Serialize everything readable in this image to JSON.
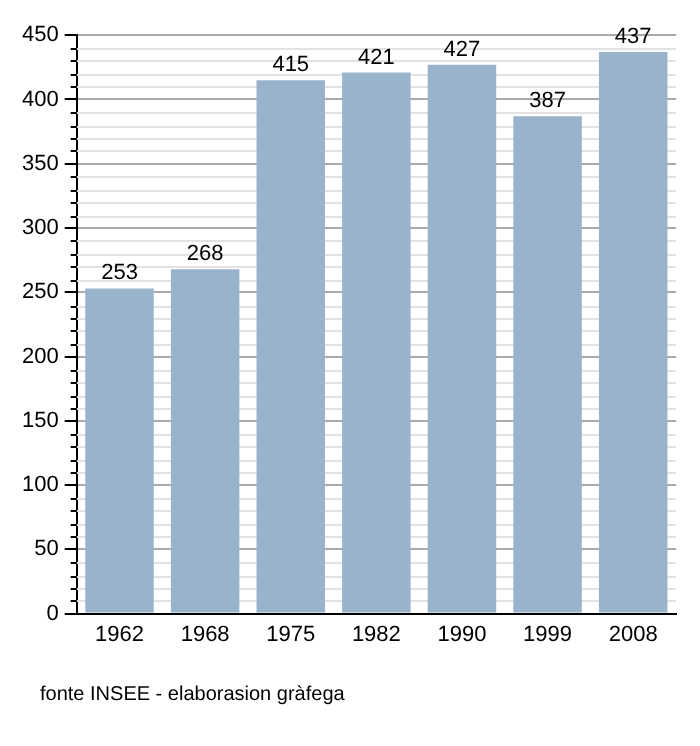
{
  "chart_data": {
    "type": "bar",
    "categories": [
      "1962",
      "1968",
      "1975",
      "1982",
      "1990",
      "1999",
      "2008"
    ],
    "values": [
      253,
      268,
      415,
      421,
      427,
      387,
      437
    ],
    "color": "#9ab3cc",
    "data_labels": true,
    "grid": "y",
    "legend": false,
    "ylim": [
      0,
      450
    ],
    "yticks": [
      0,
      50,
      100,
      150,
      200,
      250,
      300,
      350,
      400,
      450
    ],
    "annotations": [
      "fonte INSEE - elaborasion gràfega"
    ]
  }
}
